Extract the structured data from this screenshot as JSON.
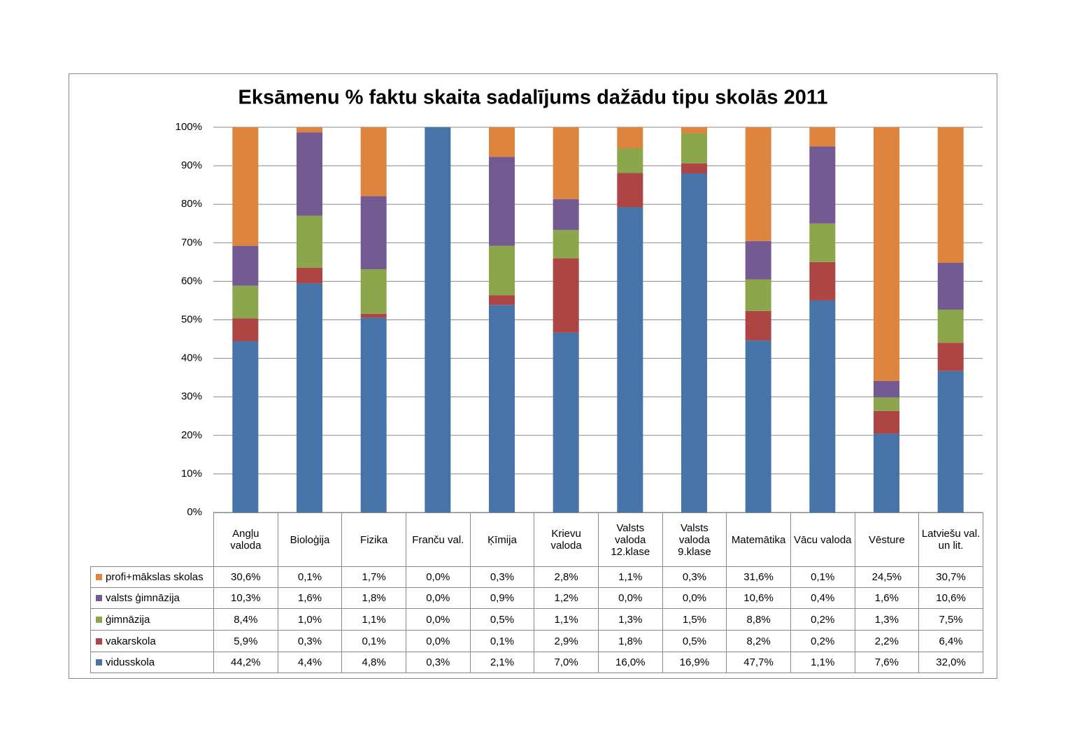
{
  "chart_data": {
    "type": "bar",
    "stacking": "percent",
    "title": "Eksāmenu % faktu skaita sadalījums dažādu tipu skolās 2011",
    "categories": [
      "Angļu valoda",
      "Bioloģija",
      "Fizika",
      "Franču val.",
      "Ķīmija",
      "Krievu valoda",
      "Valsts valoda 12.klase",
      "Valsts valoda 9.klase",
      "Matemātika",
      "Vācu valoda",
      "Vēsture",
      "Latviešu val. un lit."
    ],
    "series": [
      {
        "name": "profi+mākslas skolas",
        "color": "#dd843f",
        "values": [
          30.6,
          0.1,
          1.7,
          0.0,
          0.3,
          2.8,
          1.1,
          0.3,
          31.6,
          0.1,
          24.5,
          30.7
        ],
        "value_labels": [
          "30,6%",
          "0,1%",
          "1,7%",
          "0,0%",
          "0,3%",
          "2,8%",
          "1,1%",
          "0,3%",
          "31,6%",
          "0,1%",
          "24,5%",
          "30,7%"
        ]
      },
      {
        "name": "valsts ģimnāzija",
        "color": "#735a92",
        "values": [
          10.3,
          1.6,
          1.8,
          0.0,
          0.9,
          1.2,
          0.0,
          0.0,
          10.6,
          0.4,
          1.6,
          10.6
        ],
        "value_labels": [
          "10,3%",
          "1,6%",
          "1,8%",
          "0,0%",
          "0,9%",
          "1,2%",
          "0,0%",
          "0,0%",
          "10,6%",
          "0,4%",
          "1,6%",
          "10,6%"
        ]
      },
      {
        "name": "ģimnāzija",
        "color": "#8ba64b",
        "values": [
          8.4,
          1.0,
          1.1,
          0.0,
          0.5,
          1.1,
          1.3,
          1.5,
          8.8,
          0.2,
          1.3,
          7.5
        ],
        "value_labels": [
          "8,4%",
          "1,0%",
          "1,1%",
          "0,0%",
          "0,5%",
          "1,1%",
          "1,3%",
          "1,5%",
          "8,8%",
          "0,2%",
          "1,3%",
          "7,5%"
        ]
      },
      {
        "name": "vakarskola",
        "color": "#ac4543",
        "values": [
          5.9,
          0.3,
          0.1,
          0.0,
          0.1,
          2.9,
          1.8,
          0.5,
          8.2,
          0.2,
          2.2,
          6.4
        ],
        "value_labels": [
          "5,9%",
          "0,3%",
          "0,1%",
          "0,0%",
          "0,1%",
          "2,9%",
          "1,8%",
          "0,5%",
          "8,2%",
          "0,2%",
          "2,2%",
          "6,4%"
        ]
      },
      {
        "name": "vidusskola",
        "color": "#4674a8",
        "values": [
          44.2,
          4.4,
          4.8,
          0.3,
          2.1,
          7.0,
          16.0,
          16.9,
          47.7,
          1.1,
          7.6,
          32.0
        ],
        "value_labels": [
          "44,2%",
          "4,4%",
          "4,8%",
          "0,3%",
          "2,1%",
          "7,0%",
          "16,0%",
          "16,9%",
          "47,7%",
          "1,1%",
          "7,6%",
          "32,0%"
        ]
      }
    ],
    "ylim": [
      0,
      100
    ],
    "yticks": [
      {
        "value": 0,
        "label": "0%"
      },
      {
        "value": 10,
        "label": "10%"
      },
      {
        "value": 20,
        "label": "20%"
      },
      {
        "value": 30,
        "label": "30%"
      },
      {
        "value": 40,
        "label": "40%"
      },
      {
        "value": 50,
        "label": "50%"
      },
      {
        "value": 60,
        "label": "60%"
      },
      {
        "value": 70,
        "label": "70%"
      },
      {
        "value": 80,
        "label": "80%"
      },
      {
        "value": 90,
        "label": "90%"
      },
      {
        "value": 100,
        "label": "100%"
      }
    ],
    "grid": true
  }
}
